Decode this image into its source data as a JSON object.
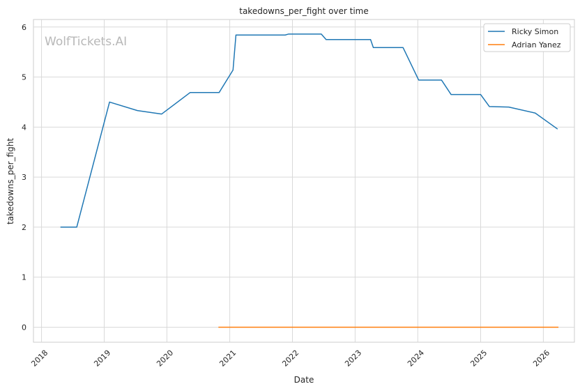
{
  "chart_data": {
    "type": "line",
    "title": "takedowns_per_fight over time",
    "xlabel": "Date",
    "ylabel": "takedowns_per_fight",
    "watermark": "WolfTickets.AI",
    "xlim": [
      "2017-11-15",
      "2026-07-01"
    ],
    "ylim": [
      -0.3,
      6.15
    ],
    "x_ticks": [
      "2018",
      "2019",
      "2020",
      "2021",
      "2022",
      "2023",
      "2024",
      "2025",
      "2026"
    ],
    "y_ticks": [
      "0",
      "1",
      "2",
      "3",
      "4",
      "5",
      "6"
    ],
    "grid": true,
    "legend_position": "top-right",
    "series": [
      {
        "name": "Ricky Simon",
        "color": "#1f77b4",
        "points": [
          [
            "2018-04-21",
            2.0
          ],
          [
            "2018-07-25",
            2.0
          ],
          [
            "2019-02-01",
            4.5
          ],
          [
            "2019-07-13",
            4.33
          ],
          [
            "2019-12-01",
            4.26
          ],
          [
            "2020-05-15",
            4.69
          ],
          [
            "2020-10-31",
            4.69
          ],
          [
            "2021-01-20",
            5.14
          ],
          [
            "2021-02-06",
            5.84
          ],
          [
            "2021-11-20",
            5.84
          ],
          [
            "2021-12-10",
            5.86
          ],
          [
            "2022-06-18",
            5.86
          ],
          [
            "2022-07-16",
            5.75
          ],
          [
            "2023-04-01",
            5.75
          ],
          [
            "2023-04-17",
            5.59
          ],
          [
            "2023-10-07",
            5.59
          ],
          [
            "2024-01-06",
            4.94
          ],
          [
            "2024-05-18",
            4.94
          ],
          [
            "2024-07-13",
            4.65
          ],
          [
            "2025-01-01",
            4.65
          ],
          [
            "2025-02-21",
            4.41
          ],
          [
            "2025-06-14",
            4.4
          ],
          [
            "2025-11-15",
            4.28
          ],
          [
            "2026-03-25",
            3.96
          ]
        ]
      },
      {
        "name": "Adrian Yanez",
        "color": "#ff7f0e",
        "points": [
          [
            "2020-10-27",
            0.0
          ],
          [
            "2026-03-30",
            0.0
          ]
        ]
      }
    ]
  }
}
